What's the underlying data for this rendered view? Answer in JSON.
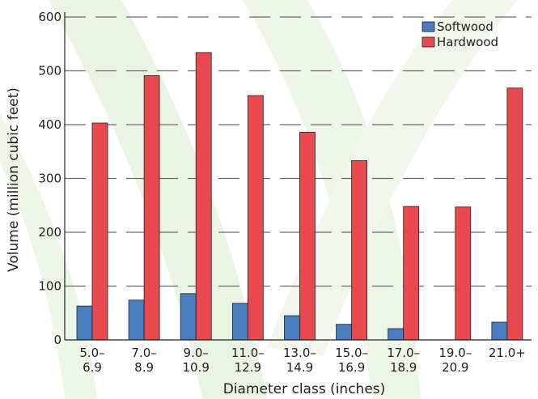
{
  "chart_data": {
    "type": "bar",
    "title": "",
    "xlabel": "Diameter class (inches)",
    "ylabel": "Volume (million cubic feet)",
    "ylim": [
      0,
      600
    ],
    "yticks": [
      "0",
      "100",
      "200",
      "300",
      "400",
      "500",
      "600"
    ],
    "grid": "horizontal dashed",
    "legend_position": "top-right",
    "categories": [
      [
        "5.0–",
        "6.9"
      ],
      [
        "7.0–",
        "8.9"
      ],
      [
        "9.0–",
        "10.9"
      ],
      [
        "11.0–",
        "12.9"
      ],
      [
        "13.0–",
        "14.9"
      ],
      [
        "15.0–",
        "16.9"
      ],
      [
        "17.0–",
        "18.9"
      ],
      [
        "19.0–",
        "20.9"
      ],
      [
        "21.0+",
        ""
      ]
    ],
    "series": [
      {
        "name": "Softwood",
        "color": "#4a7cc0",
        "values": [
          63,
          74,
          86,
          68,
          45,
          29,
          21,
          0,
          33
        ]
      },
      {
        "name": "Hardwood",
        "color": "#e8494f",
        "values": [
          403,
          491,
          534,
          454,
          386,
          333,
          248,
          247,
          468
        ]
      }
    ]
  }
}
